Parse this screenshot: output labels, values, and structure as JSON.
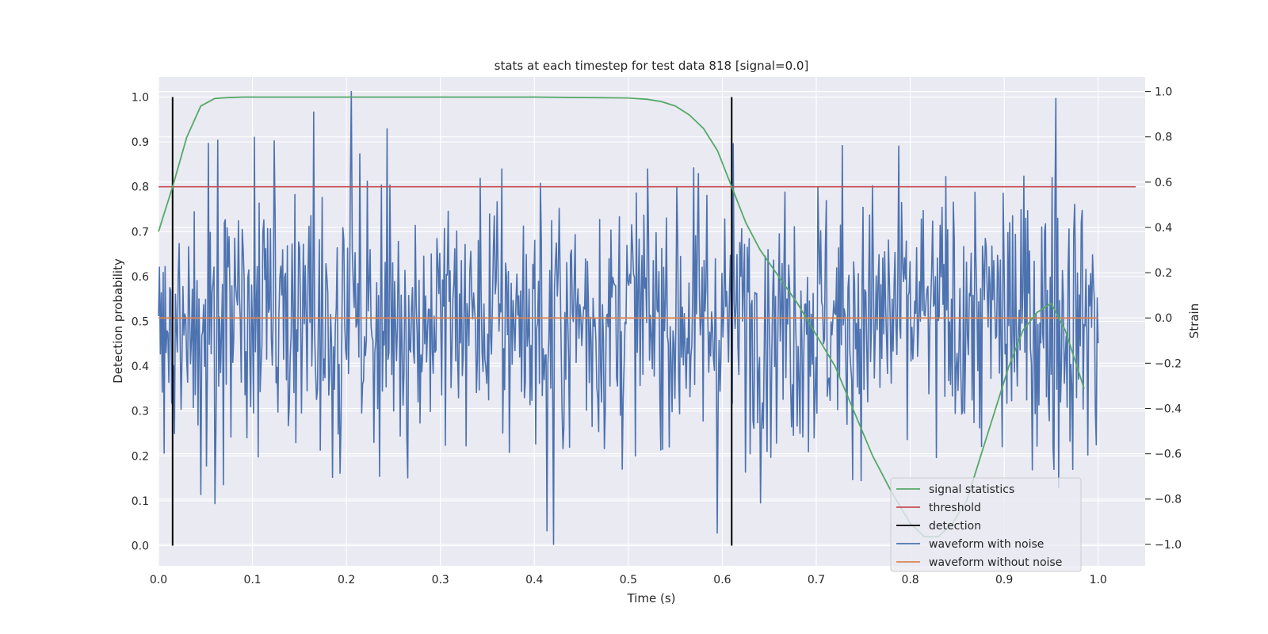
{
  "chart_data": {
    "type": "line",
    "title": "stats at each timestep for test data 818 [signal=0.0]",
    "xlabel": "Time (s)",
    "ylabel": "Detection probability",
    "y2label": "Strain",
    "xlim": [
      0.0,
      1.05
    ],
    "ylim": [
      -0.045,
      1.045
    ],
    "y2lim": [
      -1.095,
      1.065
    ],
    "xticks": [
      "0.0",
      "0.1",
      "0.2",
      "0.3",
      "0.4",
      "0.5",
      "0.6",
      "0.7",
      "0.8",
      "0.9",
      "1.0"
    ],
    "yticks": [
      "0.0",
      "0.1",
      "0.2",
      "0.3",
      "0.4",
      "0.5",
      "0.6",
      "0.7",
      "0.8",
      "0.9",
      "1.0"
    ],
    "y2ticks": [
      "−1.0",
      "−0.8",
      "−0.6",
      "−0.4",
      "−0.2",
      "0.0",
      "0.2",
      "0.4",
      "0.6",
      "0.8",
      "1.0"
    ],
    "grid": true,
    "legend_position": "lower-right",
    "legend": [
      "signal statistics",
      "threshold",
      "detection",
      "waveform with noise",
      "waveform without noise"
    ],
    "colors": {
      "signal_statistics": "#55a868",
      "threshold": "#c44e52",
      "detection": "#000000",
      "waveform_with_noise": "#4c72b0",
      "waveform_without_noise": "#dd8452",
      "plot_background": "#eaeaf2",
      "grid": "#ffffff"
    },
    "signal_statistics": {
      "x": [
        0.0,
        0.015,
        0.03,
        0.045,
        0.06,
        0.075,
        0.09,
        0.12,
        0.2,
        0.3,
        0.4,
        0.5,
        0.52,
        0.535,
        0.55,
        0.565,
        0.58,
        0.595,
        0.61,
        0.625,
        0.64,
        0.66,
        0.68,
        0.7,
        0.72,
        0.74,
        0.76,
        0.78,
        0.8,
        0.815,
        0.83,
        0.845,
        0.86,
        0.875,
        0.89,
        0.905,
        0.92,
        0.935,
        0.95,
        0.965,
        0.985
      ],
      "y": [
        0.7,
        0.8,
        0.91,
        0.98,
        0.997,
        0.999,
        1.0,
        1.0,
        1.0,
        1.0,
        1.0,
        0.998,
        0.995,
        0.99,
        0.98,
        0.96,
        0.93,
        0.88,
        0.8,
        0.72,
        0.66,
        0.6,
        0.54,
        0.47,
        0.4,
        0.3,
        0.2,
        0.12,
        0.05,
        0.02,
        0.02,
        0.05,
        0.1,
        0.2,
        0.3,
        0.4,
        0.48,
        0.52,
        0.54,
        0.48,
        0.35
      ]
    },
    "threshold": {
      "y": 0.8,
      "x": [
        0.0,
        1.04
      ]
    },
    "detections": [
      0.015,
      0.61
    ],
    "detection_span": [
      0.0,
      1.0
    ],
    "waveform_without_noise": {
      "x": [
        0.0,
        1.0
      ],
      "strain": [
        0.0,
        0.0
      ]
    },
    "waveform_with_noise": {
      "x_range": [
        0.0,
        1.0
      ],
      "strain_range": [
        -1.0,
        1.0
      ],
      "strain_std": 0.3,
      "n_points": 1000,
      "notable_points": [
        {
          "x": 0.205,
          "strain": 1.0
        },
        {
          "x": 0.165,
          "strain": 0.91
        },
        {
          "x": 0.42,
          "strain": -1.0
        },
        {
          "x": 0.413,
          "strain": -0.94
        },
        {
          "x": 0.595,
          "strain": -0.95
        },
        {
          "x": 0.955,
          "strain": 0.97
        },
        {
          "x": 0.958,
          "strain": -0.75
        },
        {
          "x": 0.06,
          "strain": -0.82
        },
        {
          "x": 0.045,
          "strain": -0.78
        }
      ]
    }
  }
}
